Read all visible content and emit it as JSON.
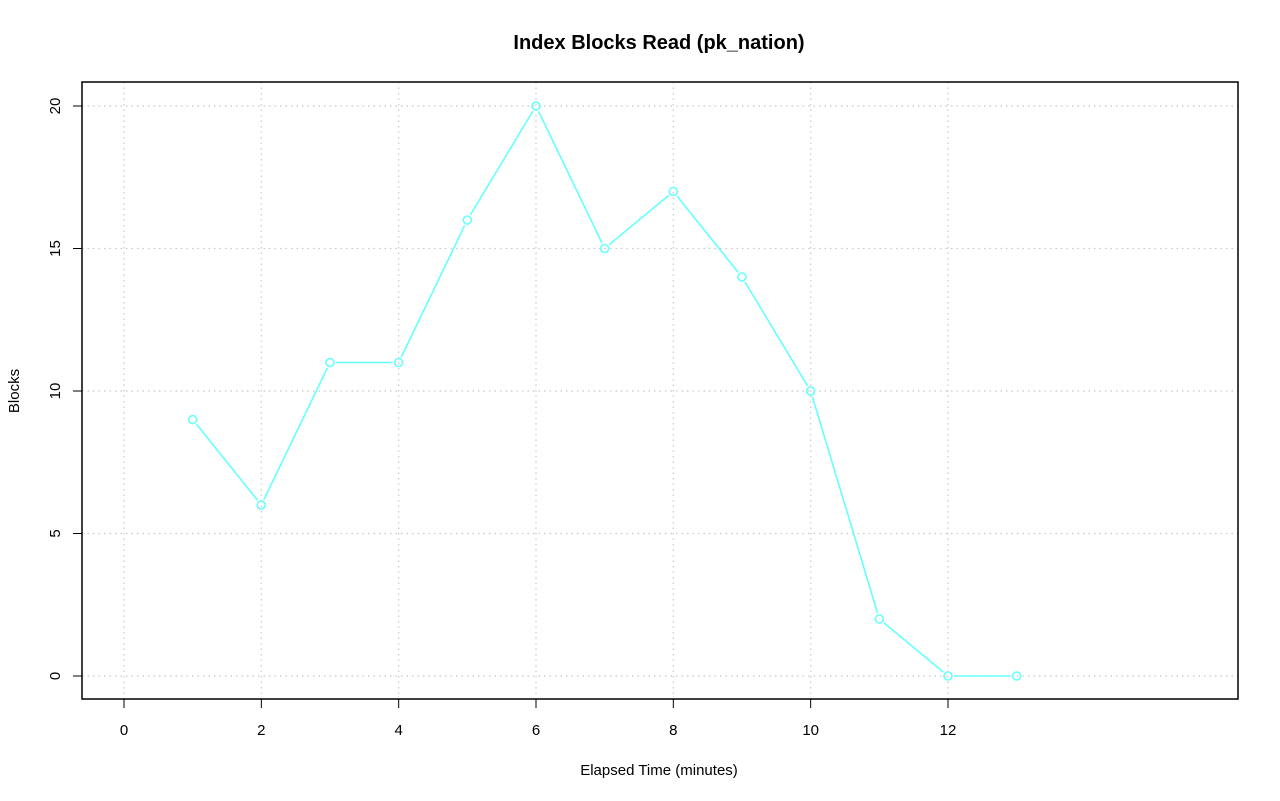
{
  "chart_data": {
    "type": "line",
    "title": "Index Blocks Read (pk_nation)",
    "xlabel": "Elapsed Time (minutes)",
    "ylabel": "Blocks",
    "xlim": [
      0,
      13
    ],
    "ylim": [
      0,
      20
    ],
    "x_ticks": [
      0,
      2,
      4,
      6,
      8,
      10,
      12
    ],
    "y_ticks": [
      0,
      5,
      10,
      15,
      20
    ],
    "x_tick_labels": [
      "0",
      "2",
      "4",
      "6",
      "8",
      "10",
      "12"
    ],
    "y_tick_labels": [
      "0",
      "5",
      "10",
      "15",
      "20"
    ],
    "grid": true,
    "series": [
      {
        "color": "#66ffff",
        "marker": "circle-open",
        "x": [
          1,
          2,
          3,
          4,
          5,
          6,
          7,
          8,
          9,
          10,
          11,
          12,
          13
        ],
        "y": [
          9,
          6,
          11,
          11,
          16,
          20,
          15,
          17,
          14,
          10,
          2,
          0,
          0
        ]
      }
    ]
  }
}
